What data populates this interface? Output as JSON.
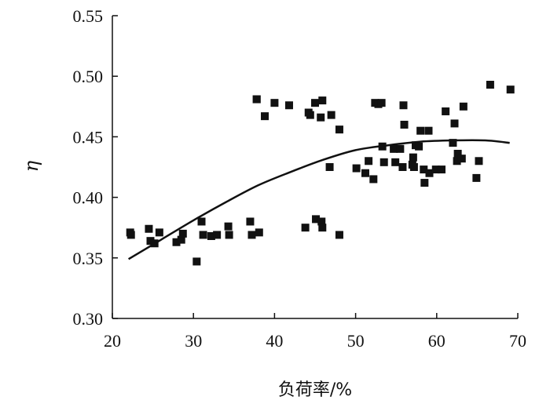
{
  "chart_data": {
    "type": "scatter",
    "title": "",
    "xlabel": "负荷率/%",
    "ylabel": "η",
    "xlim": [
      20,
      70
    ],
    "ylim": [
      0.3,
      0.55
    ],
    "xticks": [
      20,
      30,
      40,
      50,
      60,
      70
    ],
    "yticks": [
      "0.30",
      "0.35",
      "0.40",
      "0.45",
      "0.50",
      "0.55"
    ],
    "grid": false,
    "legend": "none",
    "series": [
      {
        "kind": "points",
        "x": [
          22.2,
          22.3,
          24.5,
          24.7,
          25.2,
          25.8,
          27.9,
          28.5,
          28.7,
          30.4,
          31.0,
          31.2,
          32.2,
          32.9,
          34.3,
          34.4,
          37.0,
          37.2,
          37.8,
          38.1,
          43.8,
          45.1,
          45.8,
          45.9,
          48.0,
          37.8,
          38.8,
          40.0,
          41.8,
          44.2,
          44.4,
          45.0,
          45.7,
          45.9,
          47.0,
          48.0,
          46.8,
          50.1,
          51.2,
          51.6,
          52.2,
          52.4,
          52.8,
          53.2,
          53.3,
          53.5,
          54.7,
          54.9,
          55.5,
          55.8,
          55.9,
          56.0,
          57.0,
          57.1,
          57.2,
          57.4,
          57.8,
          58.0,
          58.4,
          58.5,
          59.0,
          59.1,
          59.9,
          60.6,
          61.1,
          62.0,
          62.2,
          62.5,
          62.6,
          63.1,
          63.3,
          64.9,
          65.2,
          66.6,
          69.1
        ],
        "y": [
          0.371,
          0.369,
          0.374,
          0.364,
          0.362,
          0.371,
          0.363,
          0.365,
          0.37,
          0.347,
          0.38,
          0.369,
          0.368,
          0.369,
          0.376,
          0.369,
          0.38,
          0.369,
          0.481,
          0.371,
          0.375,
          0.382,
          0.38,
          0.375,
          0.369,
          0.481,
          0.467,
          0.478,
          0.476,
          0.47,
          0.468,
          0.478,
          0.466,
          0.48,
          0.468,
          0.456,
          0.425,
          0.424,
          0.42,
          0.43,
          0.415,
          0.478,
          0.477,
          0.478,
          0.442,
          0.429,
          0.44,
          0.429,
          0.44,
          0.425,
          0.476,
          0.46,
          0.427,
          0.433,
          0.425,
          0.443,
          0.442,
          0.455,
          0.423,
          0.412,
          0.455,
          0.42,
          0.423,
          0.423,
          0.471,
          0.445,
          0.461,
          0.43,
          0.436,
          0.432,
          0.475,
          0.416,
          0.43,
          0.493,
          0.489
        ]
      },
      {
        "kind": "fit",
        "x": [
          22,
          26,
          30,
          34,
          38,
          42,
          46,
          50,
          54,
          58,
          62,
          66,
          69
        ],
        "y": [
          0.349,
          0.365,
          0.381,
          0.396,
          0.41,
          0.421,
          0.431,
          0.439,
          0.443,
          0.446,
          0.447,
          0.447,
          0.445
        ]
      }
    ]
  }
}
